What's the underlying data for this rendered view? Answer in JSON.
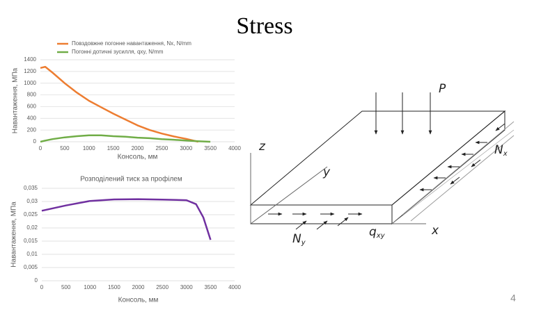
{
  "title": "Stress",
  "page_number": "4",
  "chart_data": [
    {
      "type": "line",
      "legend": "top",
      "grid": true,
      "x_label": "Консоль, мм",
      "y_label": "Навантаження, МПа",
      "x": [
        0,
        100,
        250,
        500,
        750,
        1000,
        1250,
        1500,
        1750,
        2000,
        2250,
        2500,
        2750,
        3000,
        3250,
        3500
      ],
      "series": [
        {
          "name": "Повздовжне погонне навантаження, Nx, N/mm",
          "color": "#ed7d31",
          "values": [
            1260,
            1280,
            1180,
            1000,
            840,
            700,
            590,
            480,
            380,
            280,
            200,
            140,
            90,
            50,
            0,
            null
          ]
        },
        {
          "name": "Погонні дотичні зусилля, qxy, N/mm",
          "color": "#70ad47",
          "values": [
            0,
            20,
            45,
            75,
            95,
            110,
            110,
            95,
            85,
            70,
            60,
            45,
            35,
            20,
            10,
            0
          ]
        }
      ],
      "xlim": [
        0,
        4000
      ],
      "xticks": [
        0,
        500,
        1000,
        1500,
        2000,
        2500,
        3000,
        3500,
        4000
      ],
      "ylim": [
        0,
        1400
      ],
      "yticks": [
        0,
        200,
        400,
        600,
        800,
        1000,
        1200,
        1400
      ]
    },
    {
      "type": "line",
      "grid": true,
      "title": "Розподілений тиск за профілем",
      "x_label": "Консоль, мм",
      "y_label": "Навантаження, МПа",
      "x": [
        0,
        500,
        1000,
        1500,
        2000,
        2500,
        3000,
        3200,
        3350,
        3500
      ],
      "series": [
        {
          "color": "#7030a0",
          "values": [
            0.0265,
            0.0285,
            0.0302,
            0.0308,
            0.0309,
            0.0307,
            0.0305,
            0.029,
            0.024,
            0.0155
          ]
        }
      ],
      "xlim": [
        0,
        4000
      ],
      "xticks": [
        0,
        500,
        1000,
        1500,
        2000,
        2500,
        3000,
        3500,
        4000
      ],
      "ylim": [
        0,
        0.035
      ],
      "yticks": [
        0,
        {
          "value": 0.005,
          "label": "0,005"
        },
        {
          "value": 0.01,
          "label": "0,01"
        },
        {
          "value": 0.015,
          "label": "0,015"
        },
        {
          "value": 0.02,
          "label": "0,02"
        },
        {
          "value": 0.025,
          "label": "0,025"
        },
        {
          "value": 0.03,
          "label": "0,03"
        },
        {
          "value": 0.035,
          "label": "0,035"
        }
      ]
    }
  ],
  "diagram": {
    "force": "P",
    "axis_z": "z",
    "axis_y": "y",
    "axis_x": "x",
    "nx": {
      "text": "N",
      "sub": "x"
    },
    "ny": {
      "text": "N",
      "sub": "y"
    },
    "qxy": {
      "text": "q",
      "sub": "xy"
    }
  }
}
